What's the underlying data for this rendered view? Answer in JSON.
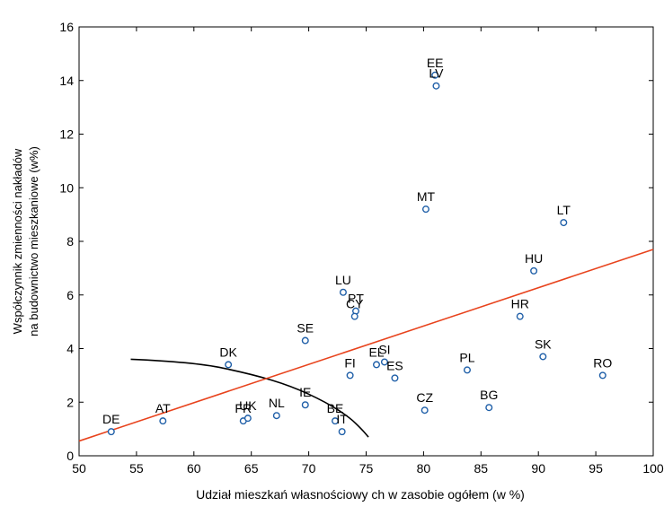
{
  "colors": {
    "point": "#1f5fa8",
    "trend": "#e8431d",
    "curve": "#000000",
    "axis": "#000000"
  },
  "chart_data": {
    "type": "scatter",
    "xlabel": "Udział mieszkań własnościowy ch w zasobie ogółem (w %)",
    "ylabel_line1": "Współczynnik zmienności nakładów",
    "ylabel_line2": "na budownictwo mieszkaniowe (w%)",
    "xlim": [
      50,
      100
    ],
    "ylim": [
      0,
      16
    ],
    "xticks": [
      50,
      55,
      60,
      65,
      70,
      75,
      80,
      85,
      90,
      95,
      100
    ],
    "yticks": [
      0,
      2,
      4,
      6,
      8,
      10,
      12,
      14,
      16
    ],
    "points": [
      {
        "label": "DE",
        "x": 52.8,
        "y": 0.9
      },
      {
        "label": "AT",
        "x": 57.3,
        "y": 1.3
      },
      {
        "label": "FR",
        "x": 64.3,
        "y": 1.3
      },
      {
        "label": "UK",
        "x": 64.7,
        "y": 1.4
      },
      {
        "label": "NL",
        "x": 67.2,
        "y": 1.5
      },
      {
        "label": "DK",
        "x": 63.0,
        "y": 3.4
      },
      {
        "label": "IE",
        "x": 69.7,
        "y": 1.9
      },
      {
        "label": "SE",
        "x": 69.7,
        "y": 4.3
      },
      {
        "label": "BE",
        "x": 72.3,
        "y": 1.3
      },
      {
        "label": "IT",
        "x": 72.9,
        "y": 0.9
      },
      {
        "label": "FI",
        "x": 73.6,
        "y": 3.0
      },
      {
        "label": "LU",
        "x": 73.0,
        "y": 6.1
      },
      {
        "label": "PT",
        "x": 74.1,
        "y": 5.4
      },
      {
        "label": "CY",
        "x": 74.0,
        "y": 5.2
      },
      {
        "label": "EL",
        "x": 75.9,
        "y": 3.4
      },
      {
        "label": "SI",
        "x": 76.6,
        "y": 3.5
      },
      {
        "label": "ES",
        "x": 77.5,
        "y": 2.9
      },
      {
        "label": "CZ",
        "x": 80.1,
        "y": 1.7
      },
      {
        "label": "MT",
        "x": 80.2,
        "y": 9.2
      },
      {
        "label": "EE",
        "x": 81.0,
        "y": 14.2
      },
      {
        "label": "LV",
        "x": 81.1,
        "y": 13.8
      },
      {
        "label": "PL",
        "x": 83.8,
        "y": 3.2
      },
      {
        "label": "BG",
        "x": 85.7,
        "y": 1.8
      },
      {
        "label": "HR",
        "x": 88.4,
        "y": 5.2
      },
      {
        "label": "HU",
        "x": 89.6,
        "y": 6.9
      },
      {
        "label": "SK",
        "x": 90.4,
        "y": 3.7
      },
      {
        "label": "LT",
        "x": 92.2,
        "y": 8.7
      },
      {
        "label": "RO",
        "x": 95.6,
        "y": 3.0
      }
    ],
    "trendline": [
      [
        50,
        0.55
      ],
      [
        100,
        7.7
      ]
    ],
    "curve": [
      [
        54.5,
        3.6
      ],
      [
        60,
        3.5
      ],
      [
        65,
        3.05
      ],
      [
        68.5,
        2.6
      ],
      [
        71.5,
        2.0
      ],
      [
        73.5,
        1.45
      ],
      [
        74.6,
        1.0
      ],
      [
        75.2,
        0.7
      ]
    ]
  }
}
